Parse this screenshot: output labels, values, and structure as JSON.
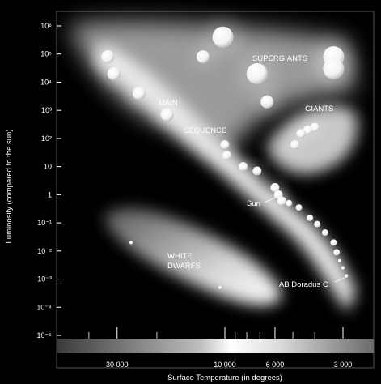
{
  "chart_data": {
    "type": "scatter",
    "title": "",
    "xlabel": "Surface Temperature (in degrees)",
    "ylabel": "Luminosity (compared to the sun)",
    "x_scale": "log-reversed",
    "y_scale": "log",
    "x_ticks": [
      "30 000",
      "10 000",
      "6 000",
      "3 000"
    ],
    "x_tick_values": [
      30000,
      10000,
      6000,
      3000
    ],
    "y_ticks": [
      "10⁶",
      "10⁵",
      "10⁴",
      "10³",
      "10²",
      "10",
      "1",
      "10⁻¹",
      "10⁻²",
      "10⁻³",
      "10⁻⁴",
      "10⁻⁵"
    ],
    "y_tick_values": [
      1000000,
      100000,
      10000,
      1000,
      100,
      10,
      1,
      0.1,
      0.01,
      0.001,
      0.0001,
      1e-05
    ],
    "ylim": [
      1e-05,
      1000000
    ],
    "region_labels": {
      "supergiants": "SUPERGIANTS",
      "giants": "GIANTS",
      "main": "MAIN",
      "sequence": "SEQUENCE",
      "white": "WHITE",
      "dwarfs": "DWARFS"
    },
    "annotations": {
      "sun": "Sun",
      "ab_doradus": "AB Doradus C"
    },
    "series": [
      {
        "group": "main-sequence",
        "points": [
          {
            "temp": 33000,
            "lum": 80000,
            "size": "large"
          },
          {
            "temp": 31000,
            "lum": 20000,
            "size": "large"
          },
          {
            "temp": 24000,
            "lum": 4000,
            "size": "large"
          },
          {
            "temp": 18000,
            "lum": 700,
            "size": "large"
          },
          {
            "temp": 10000,
            "lum": 60,
            "size": "medium"
          },
          {
            "temp": 9800,
            "lum": 25,
            "size": "medium"
          },
          {
            "temp": 8300,
            "lum": 10,
            "size": "medium"
          },
          {
            "temp": 7200,
            "lum": 7,
            "size": "medium"
          },
          {
            "temp": 6000,
            "lum": 1.8,
            "size": "medium"
          },
          {
            "temp": 5800,
            "lum": 1,
            "size": "medium",
            "label": "Sun"
          },
          {
            "temp": 5600,
            "lum": 0.6,
            "size": "medium"
          },
          {
            "temp": 5200,
            "lum": 0.5,
            "size": "small"
          },
          {
            "temp": 4700,
            "lum": 0.35,
            "size": "small"
          },
          {
            "temp": 4200,
            "lum": 0.15,
            "size": "small"
          },
          {
            "temp": 3900,
            "lum": 0.09,
            "size": "small"
          },
          {
            "temp": 3600,
            "lum": 0.045,
            "size": "small"
          },
          {
            "temp": 3300,
            "lum": 0.02,
            "size": "small"
          },
          {
            "temp": 3200,
            "lum": 0.009,
            "size": "small"
          },
          {
            "temp": 3100,
            "lum": 0.0045,
            "size": "tiny"
          },
          {
            "temp": 3000,
            "lum": 0.0025,
            "size": "tiny"
          },
          {
            "temp": 2900,
            "lum": 0.0013,
            "size": "tiny",
            "label": "AB Doradus C"
          }
        ]
      },
      {
        "group": "supergiants",
        "points": [
          {
            "temp": 10200,
            "lum": 400000,
            "size": "huge"
          },
          {
            "temp": 12500,
            "lum": 80000,
            "size": "large"
          },
          {
            "temp": 7200,
            "lum": 20000,
            "size": "huge"
          },
          {
            "temp": 6500,
            "lum": 2000,
            "size": "large"
          },
          {
            "temp": 3300,
            "lum": 80000,
            "size": "huge"
          },
          {
            "temp": 3300,
            "lum": 30000,
            "size": "huge"
          }
        ]
      },
      {
        "group": "giants",
        "points": [
          {
            "temp": 4300,
            "lum": 200,
            "size": "medium"
          },
          {
            "temp": 4000,
            "lum": 250,
            "size": "medium"
          },
          {
            "temp": 4600,
            "lum": 150,
            "size": "medium"
          },
          {
            "temp": 4900,
            "lum": 60,
            "size": "medium"
          }
        ]
      },
      {
        "group": "white-dwarfs",
        "points": [
          {
            "temp": 26000,
            "lum": 0.02,
            "size": "tiny"
          },
          {
            "temp": 10500,
            "lum": 0.0005,
            "size": "tiny"
          }
        ]
      }
    ]
  }
}
